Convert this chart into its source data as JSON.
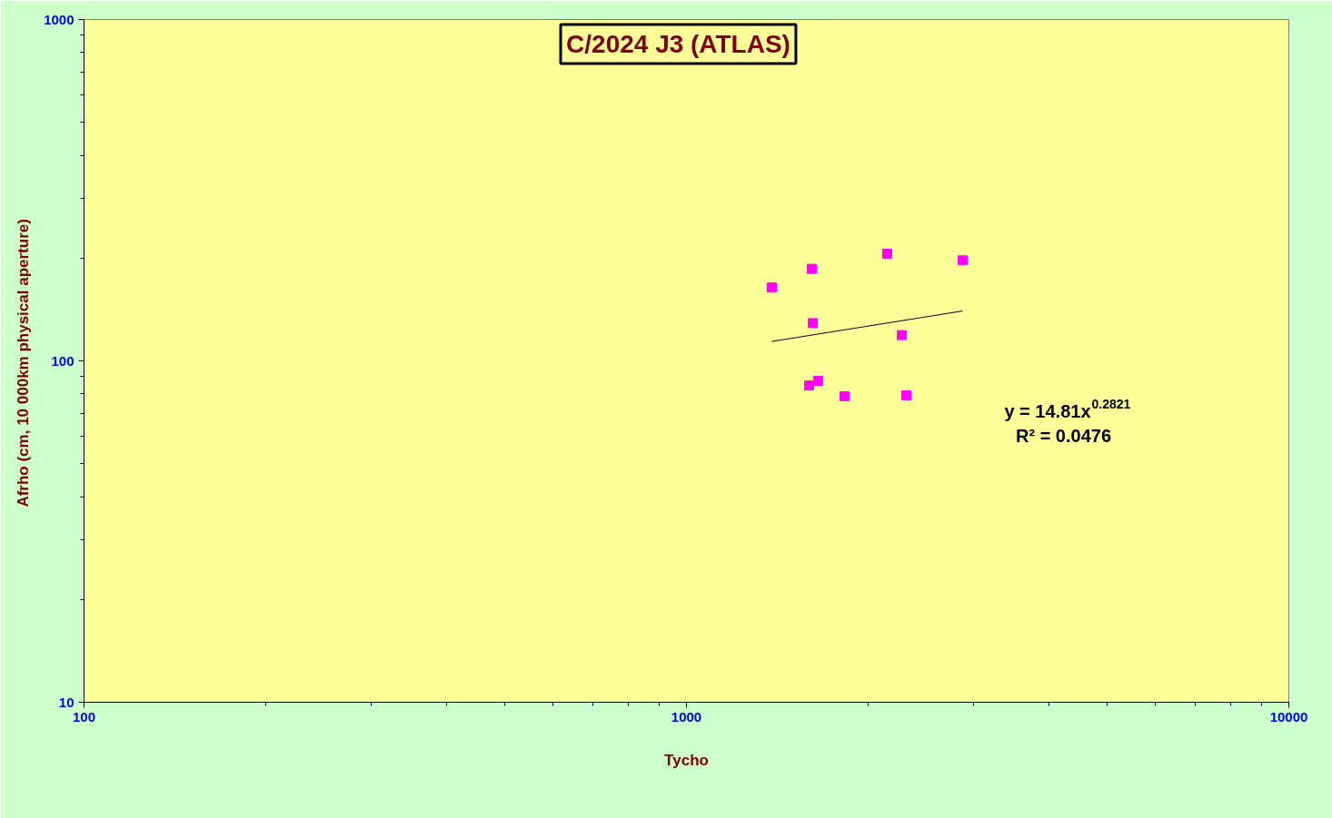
{
  "chart_data": {
    "type": "scatter",
    "title": "C/2024 J3 (ATLAS)",
    "xlabel": "Tycho",
    "ylabel": "Afrho (cm, 10 000km physical  aperture)",
    "log": "xy",
    "xlim": [
      100,
      10000
    ],
    "ylim": [
      10,
      1000
    ],
    "xticks": [
      100,
      1000,
      10000
    ],
    "yticks": [
      10,
      100,
      1000
    ],
    "grid": false,
    "marker": "square",
    "series": [
      {
        "color": "#ff00ff",
        "x": [
          1386,
          1615,
          1621,
          2154,
          2874,
          2278,
          1598,
          1654,
          1830,
          2317
        ],
        "values": [
          164,
          186,
          129,
          206,
          197,
          119,
          84.7,
          87.4,
          78.8,
          79.3
        ]
      },
      {
        "type": "line",
        "color": "#000000",
        "line_style": "solid",
        "marker": "none",
        "x": [
          1386,
          2874
        ],
        "values": [
          114,
          140
        ]
      }
    ],
    "annotations": [
      "y = 14.81x$^{0.2821}$",
      "R² = 0.0476"
    ]
  }
}
